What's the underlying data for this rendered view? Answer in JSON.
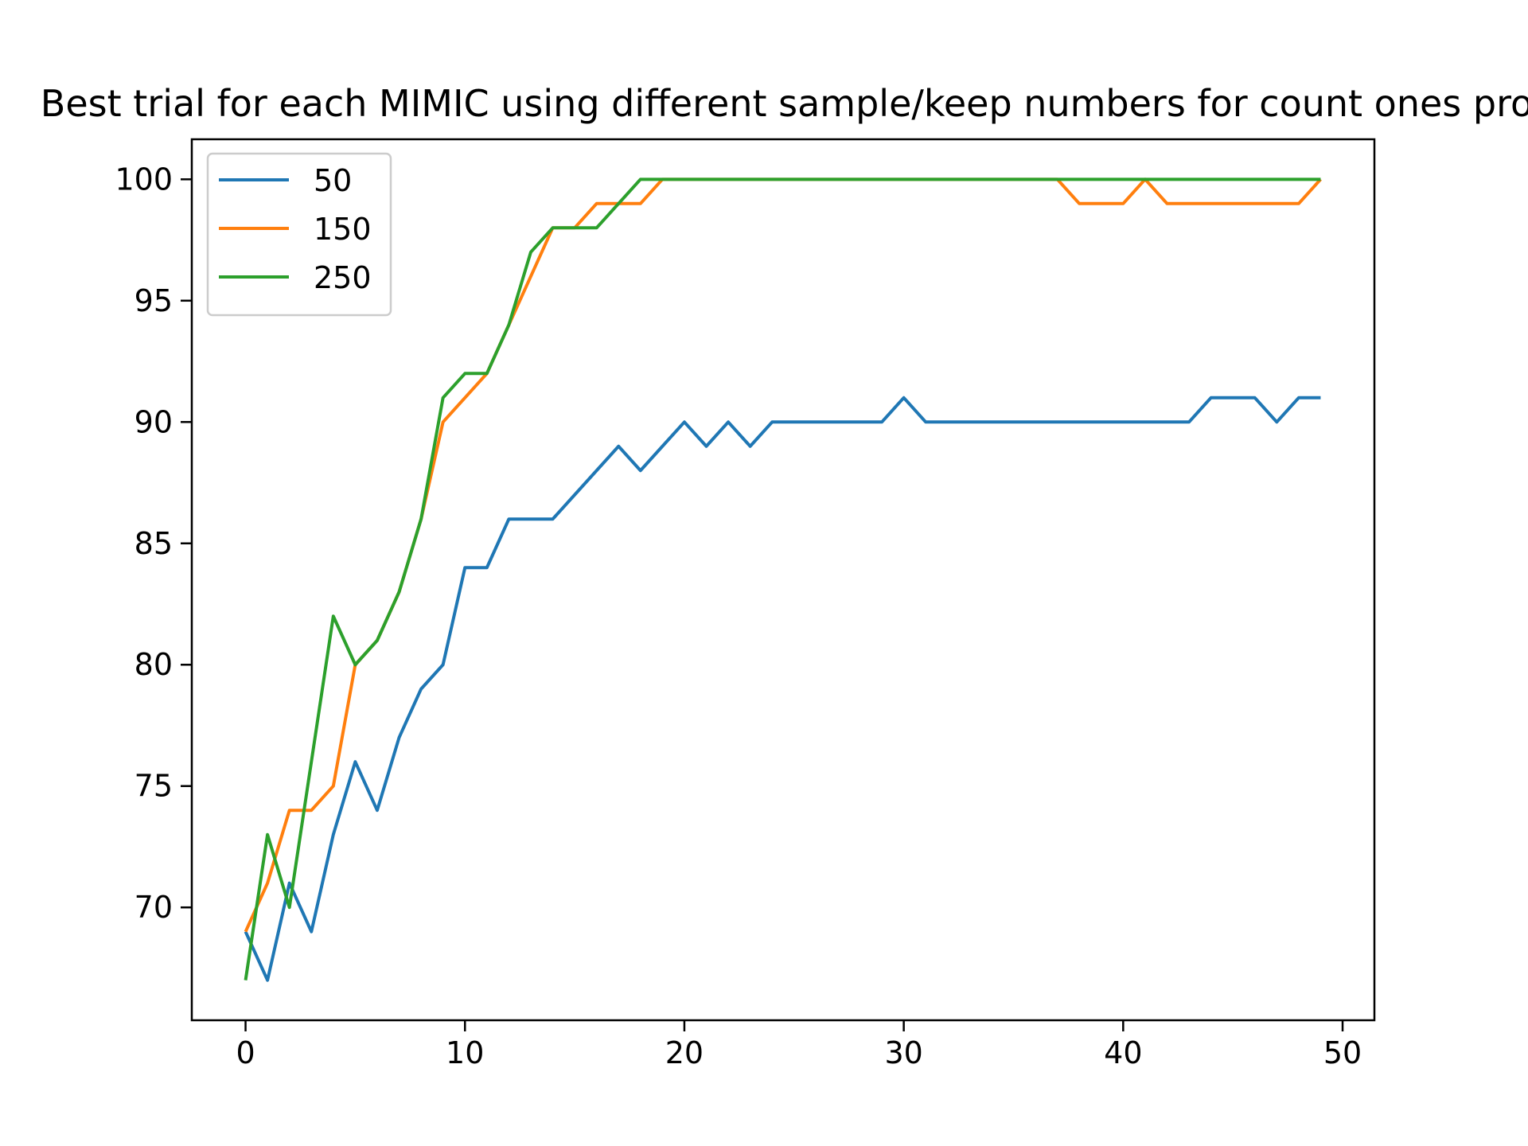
{
  "chart_data": {
    "type": "line",
    "title": "Best trial for each MIMIC using different sample/keep numbers for count ones problem",
    "xlabel": "",
    "ylabel": "",
    "xlim": [
      -2.45,
      51.45
    ],
    "ylim": [
      65.35,
      101.65
    ],
    "x_ticks": [
      0,
      10,
      20,
      30,
      40,
      50
    ],
    "y_ticks": [
      70,
      75,
      80,
      85,
      90,
      95,
      100
    ],
    "grid": false,
    "legend_position": "upper-left",
    "x": [
      0,
      1,
      2,
      3,
      4,
      5,
      6,
      7,
      8,
      9,
      10,
      11,
      12,
      13,
      14,
      15,
      16,
      17,
      18,
      19,
      20,
      21,
      22,
      23,
      24,
      25,
      26,
      27,
      28,
      29,
      30,
      31,
      32,
      33,
      34,
      35,
      36,
      37,
      38,
      39,
      40,
      41,
      42,
      43,
      44,
      45,
      46,
      47,
      48,
      49
    ],
    "series": [
      {
        "name": "50",
        "color": "#1f77b4",
        "values": [
          69,
          67,
          71,
          69,
          73,
          76,
          74,
          77,
          79,
          80,
          84,
          84,
          86,
          86,
          86,
          87,
          88,
          89,
          88,
          89,
          90,
          89,
          90,
          89,
          90,
          90,
          90,
          90,
          90,
          90,
          91,
          90,
          90,
          90,
          90,
          90,
          90,
          90,
          90,
          90,
          90,
          90,
          90,
          90,
          91,
          91,
          91,
          90,
          91,
          91
        ]
      },
      {
        "name": "150",
        "color": "#ff7f0e",
        "values": [
          69,
          71,
          74,
          74,
          75,
          80,
          81,
          83,
          86,
          90,
          91,
          92,
          94,
          96,
          98,
          98,
          99,
          99,
          99,
          100,
          100,
          100,
          100,
          100,
          100,
          100,
          100,
          100,
          100,
          100,
          100,
          100,
          100,
          100,
          100,
          100,
          100,
          100,
          99,
          99,
          99,
          100,
          99,
          99,
          99,
          99,
          99,
          99,
          99,
          100
        ]
      },
      {
        "name": "250",
        "color": "#2ca02c",
        "values": [
          67,
          73,
          70,
          76,
          82,
          80,
          81,
          83,
          86,
          91,
          92,
          92,
          94,
          97,
          98,
          98,
          98,
          99,
          100,
          100,
          100,
          100,
          100,
          100,
          100,
          100,
          100,
          100,
          100,
          100,
          100,
          100,
          100,
          100,
          100,
          100,
          100,
          100,
          100,
          100,
          100,
          100,
          100,
          100,
          100,
          100,
          100,
          100,
          100,
          100
        ]
      }
    ]
  }
}
